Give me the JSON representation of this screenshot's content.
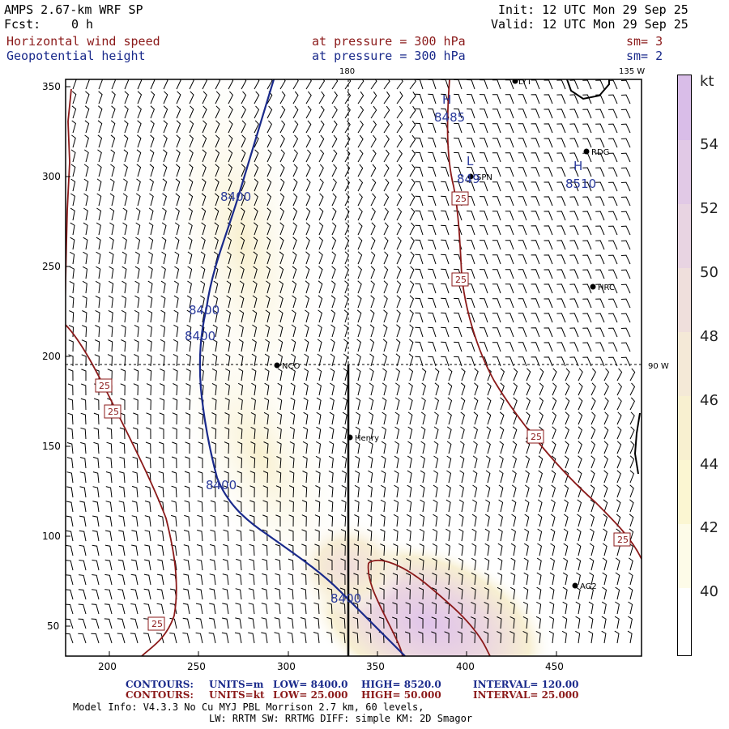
{
  "header": {
    "model": "AMPS 2.67-km WRF SP",
    "fcst_label": "Fcst:",
    "fcst_value": "0 h",
    "init": "Init: 12 UTC Mon 29 Sep 25",
    "valid": "Valid: 12 UTC Mon 29 Sep 25",
    "field1_name": "Horizontal wind speed",
    "field1_level": "at pressure =  300 hPa",
    "field1_sm": "sm= 3",
    "field2_name": "Geopotential height",
    "field2_level": "at pressure =  300 hPa",
    "field2_sm": "sm= 2"
  },
  "map": {
    "lon_top_180": "180",
    "lon_top_135w": "135 W",
    "lon_right_90w": "90 W",
    "x_ticks": [
      "200",
      "250",
      "300",
      "350",
      "400",
      "450"
    ],
    "y_ticks": [
      "350",
      "300",
      "250",
      "200",
      "150",
      "100",
      "50"
    ],
    "stations": [
      {
        "name": "LYT"
      },
      {
        "name": "RDG"
      },
      {
        "name": "SPN"
      },
      {
        "name": "HRC"
      },
      {
        "name": "NCO"
      },
      {
        "name": "Henry"
      },
      {
        "name": "AG2"
      }
    ],
    "height_labels": [
      "8400",
      "8400",
      "8400",
      "8400",
      "8400",
      "8485",
      "8510",
      "849"
    ],
    "hl_marks": [
      "H",
      "H",
      "L"
    ],
    "speed_labels": [
      "25",
      "25",
      "25",
      "25",
      "25",
      "25",
      "25",
      "25"
    ]
  },
  "colorbar": {
    "unit": "kt",
    "labels": [
      "54",
      "52",
      "50",
      "48",
      "46",
      "44",
      "42",
      "40"
    ],
    "colors": [
      "#d7b8e8",
      "#e0c4e8",
      "#e8d2e2",
      "#eddcdc",
      "#f3e7d6",
      "#f8f0cf",
      "#fbf6d2",
      "#fdfbe6",
      "#ffffff"
    ]
  },
  "footer": {
    "c1_label": "CONTOURS:",
    "c1_units": "UNITS=m",
    "c1_low": "LOW=  8400.0",
    "c1_high": "HIGH=  8520.0",
    "c1_interval": "INTERVAL=    120.00",
    "c2_label": "CONTOURS:",
    "c2_units": "UNITS=kt",
    "c2_low": "LOW=  25.000",
    "c2_high": "HIGH=  50.000",
    "c2_interval": "INTERVAL=    25.000",
    "model_info": "Model Info: V4.3.3    No Cu   MYJ PBL  Morrison          2.7 km,  60 levels,",
    "model_info2": "LW: RRTM SW: RRTMG   DIFF: simple KM: 2D Smagor"
  }
}
